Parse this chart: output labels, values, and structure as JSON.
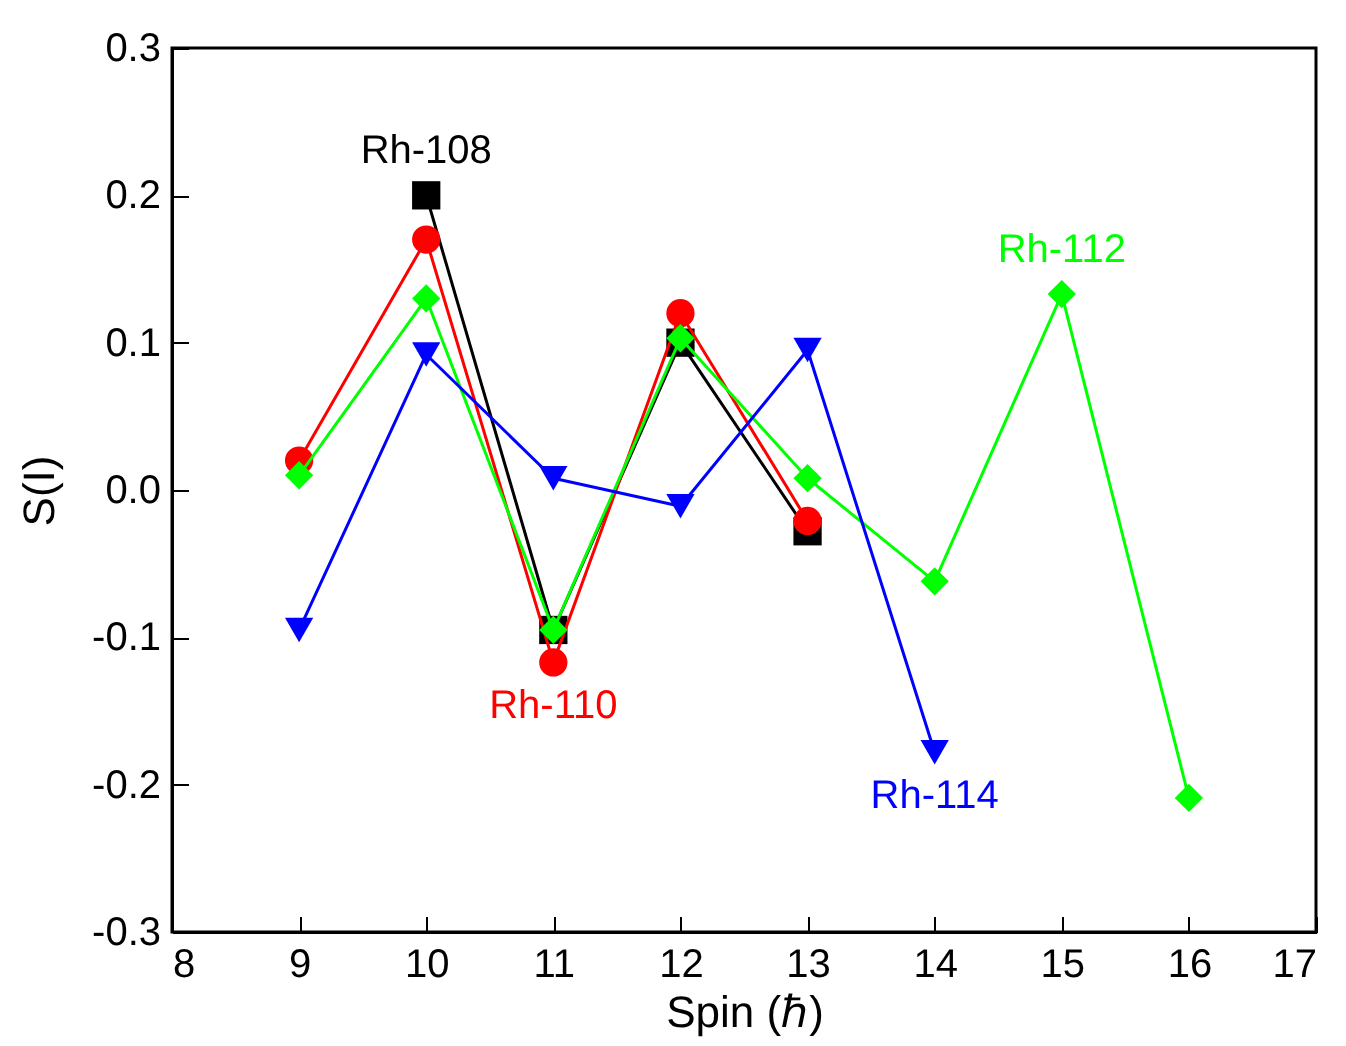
{
  "chart_data": {
    "type": "line",
    "xlabel": "Spin (ℏ)",
    "ylabel": "S(I)",
    "xlim": [
      8,
      17
    ],
    "xticks": [
      8,
      9,
      10,
      11,
      12,
      13,
      14,
      15,
      16,
      17
    ],
    "ylim": [
      -0.3,
      0.3
    ],
    "yticks": [
      -0.3,
      -0.2,
      -0.1,
      {
        "value": 0,
        "label": "0.0"
      },
      0.1,
      0.2,
      0.3
    ],
    "grid": false,
    "series": [
      {
        "name": "Rh-108",
        "color": "#000000",
        "marker": "square",
        "x": [
          10,
          11,
          12,
          13
        ],
        "values": [
          0.2,
          -0.095,
          0.1,
          -0.028
        ]
      },
      {
        "name": "Rh-110",
        "color": "#ff0000",
        "marker": "circle",
        "x": [
          9,
          10,
          11,
          12,
          13
        ],
        "values": [
          0.02,
          0.17,
          -0.117,
          0.12,
          -0.021
        ]
      },
      {
        "name": "Rh-112",
        "color": "#00ff00",
        "marker": "diamond",
        "x": [
          9,
          10,
          11,
          12,
          13,
          14,
          15,
          16
        ],
        "values": [
          0.01,
          0.13,
          -0.095,
          0.103,
          0.008,
          -0.062,
          0.133,
          -0.209
        ]
      },
      {
        "name": "Rh-114",
        "color": "#0000ff",
        "marker": "triangle",
        "x": [
          9,
          10,
          11,
          12,
          13,
          14
        ],
        "values": [
          -0.095,
          0.092,
          0.008,
          -0.011,
          0.095,
          -0.178
        ]
      }
    ]
  }
}
